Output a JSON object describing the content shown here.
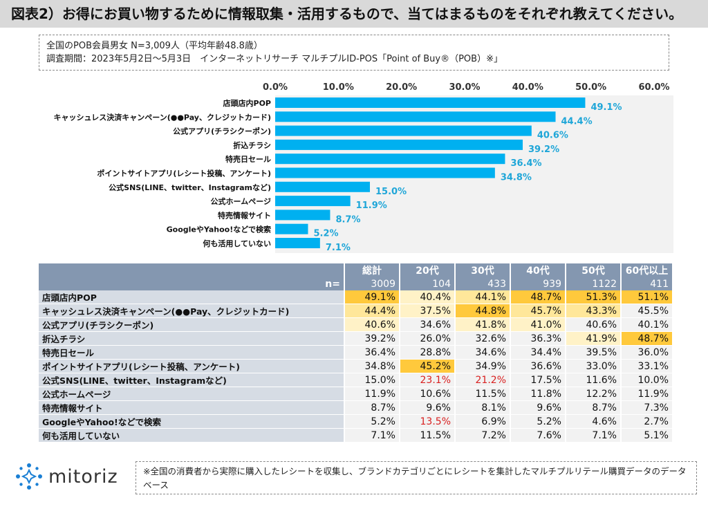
{
  "header": {
    "title": "図表2）お得にお買い物するために情報取集・活用するもので、当てはまるものをそれぞれ教えてください。"
  },
  "survey": {
    "line1": "全国のPOB会員男女 N=3,009人（平均年齢48.8歳）",
    "line2": "調査期間：2023年5月2日～5月3日　インターネットリサーチ マルチプルID-POS「Point of Buy®（POB）※」"
  },
  "chart_data": {
    "type": "bar",
    "orientation": "horizontal",
    "categories": [
      "店頭店内POP",
      "キャッシュレス決済キャンペーン(●●Pay、クレジットカード)",
      "公式アプリ(チラシクーポン)",
      "折込チラシ",
      "特売日セール",
      "ポイントサイトアプリ(レシート投稿、アンケート)",
      "公式SNS(LINE、twitter、Instagramなど)",
      "公式ホームページ",
      "特売情報サイト",
      "GoogleやYahoo!などで検索",
      "何も活用していない"
    ],
    "values": [
      49.1,
      44.4,
      40.6,
      39.2,
      36.4,
      34.8,
      15.0,
      11.9,
      8.7,
      5.2,
      7.1
    ],
    "value_labels": [
      "49.1%",
      "44.4%",
      "40.6%",
      "39.2%",
      "36.4%",
      "34.8%",
      "15.0%",
      "11.9%",
      "8.7%",
      "5.2%",
      "7.1%"
    ],
    "xlim": [
      0,
      60
    ],
    "x_ticks": [
      "0.0%",
      "10.0%",
      "20.0%",
      "30.0%",
      "40.0%",
      "50.0%",
      "60.0%"
    ],
    "bar_color": "#00b0f0",
    "label_color": "#1fa6d8",
    "background_color": "#f2f2f2"
  },
  "table": {
    "headers": [
      "総計",
      "20代",
      "30代",
      "40代",
      "50代",
      "60代以上"
    ],
    "n_label": "n=",
    "n_values": [
      "3009",
      "104",
      "433",
      "939",
      "1122",
      "411"
    ],
    "rows": [
      {
        "label": "店頭店内POP",
        "values": [
          "49.1%",
          "40.4%",
          "44.1%",
          "48.7%",
          "51.3%",
          "51.1%"
        ],
        "styles": [
          "hi1",
          "hi3",
          "hi2",
          "hi1",
          "hi1",
          "hi1"
        ]
      },
      {
        "label": "キャッシュレス決済キャンペーン(●●Pay、クレジットカード)",
        "values": [
          "44.4%",
          "37.5%",
          "44.8%",
          "45.7%",
          "43.3%",
          "45.5%"
        ],
        "styles": [
          "hi2",
          "hi3",
          "hi1",
          "hi2",
          "hi2",
          ""
        ]
      },
      {
        "label": "公式アプリ(チラシクーポン)",
        "values": [
          "40.6%",
          "34.6%",
          "41.8%",
          "41.0%",
          "40.6%",
          "40.1%"
        ],
        "styles": [
          "hi3",
          "",
          "hi3",
          "hi3",
          "",
          ""
        ]
      },
      {
        "label": "折込チラシ",
        "values": [
          "39.2%",
          "26.0%",
          "32.6%",
          "36.3%",
          "41.9%",
          "48.7%"
        ],
        "styles": [
          "",
          "",
          "",
          "",
          "hi3",
          "hi1"
        ]
      },
      {
        "label": "特売日セール",
        "values": [
          "36.4%",
          "28.8%",
          "34.6%",
          "34.4%",
          "39.5%",
          "36.0%"
        ],
        "styles": [
          "",
          "",
          "",
          "",
          "",
          ""
        ]
      },
      {
        "label": "ポイントサイトアプリ(レシート投稿、アンケート)",
        "values": [
          "34.8%",
          "45.2%",
          "34.9%",
          "36.6%",
          "33.0%",
          "33.1%"
        ],
        "styles": [
          "",
          "hi1",
          "",
          "",
          "",
          ""
        ]
      },
      {
        "label": "公式SNS(LINE、twitter、Instagramなど)",
        "values": [
          "15.0%",
          "23.1%",
          "21.2%",
          "17.5%",
          "11.6%",
          "10.0%"
        ],
        "styles": [
          "",
          "red",
          "red",
          "",
          "",
          ""
        ]
      },
      {
        "label": "公式ホームページ",
        "values": [
          "11.9%",
          "10.6%",
          "11.5%",
          "11.8%",
          "12.2%",
          "11.9%"
        ],
        "styles": [
          "",
          "",
          "",
          "",
          "",
          ""
        ]
      },
      {
        "label": "特売情報サイト",
        "values": [
          "8.7%",
          "9.6%",
          "8.1%",
          "9.6%",
          "8.7%",
          "7.3%"
        ],
        "styles": [
          "",
          "",
          "",
          "",
          "",
          ""
        ]
      },
      {
        "label": "GoogleやYahoo!などで検索",
        "values": [
          "5.2%",
          "13.5%",
          "6.9%",
          "5.2%",
          "4.6%",
          "2.7%"
        ],
        "styles": [
          "",
          "red",
          "",
          "",
          "",
          ""
        ]
      },
      {
        "label": "何も活用していない",
        "values": [
          "7.1%",
          "11.5%",
          "7.2%",
          "7.6%",
          "7.1%",
          "5.1%"
        ],
        "styles": [
          "",
          "",
          "",
          "",
          "",
          ""
        ]
      }
    ]
  },
  "logo": {
    "text": "mitoriz",
    "icon": "sparkle-logo-icon",
    "color": "#1a7fd4"
  },
  "footnote": {
    "text": "※全国の消費者から実際に購入したレシートを収集し、ブランドカテゴリごとにレシートを集計したマルチプルリテール購買データのデータベース"
  }
}
